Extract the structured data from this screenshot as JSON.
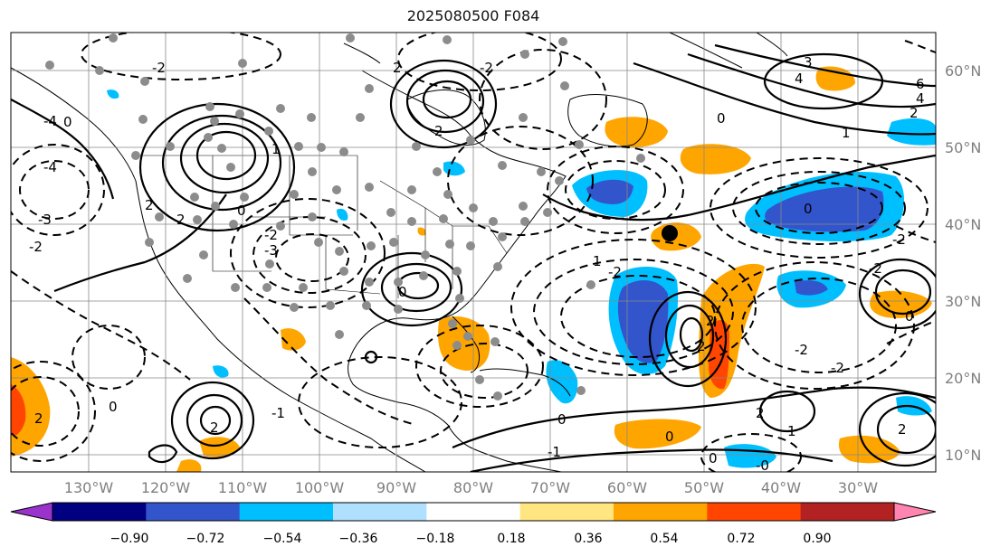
{
  "title": "2025080500 F084",
  "lon_labels": [
    "130°W",
    "120°W",
    "110°W",
    "100°W",
    "90°W",
    "80°W",
    "70°W",
    "60°W",
    "50°W",
    "40°W",
    "30°W"
  ],
  "lat_labels": [
    "60°N",
    "50°N",
    "40°N",
    "30°N",
    "20°N",
    "10°N"
  ],
  "colorbar": {
    "ticks": [
      "−0.90",
      "−0.72",
      "−0.54",
      "−0.36",
      "−0.18",
      "0.18",
      "0.36",
      "0.54",
      "0.72",
      "0.90"
    ],
    "colors": [
      "#9933cc",
      "#000080",
      "#3355cc",
      "#00bfff",
      "#b0e0ff",
      "#ffffff",
      "#ffe680",
      "#ffa500",
      "#ff4500",
      "#b22222",
      "#ff85b0"
    ]
  },
  "contour_labels": [
    "0",
    "2",
    "4",
    "-2",
    "-4",
    "3",
    "1",
    "-1",
    "6",
    "-3"
  ],
  "map": {
    "region": "North Atlantic and North America",
    "overlays": [
      "solid positive contours",
      "dashed negative contours",
      "shaded anomaly fill",
      "grey station dots",
      "black marker near 55°W 39°N"
    ]
  }
}
